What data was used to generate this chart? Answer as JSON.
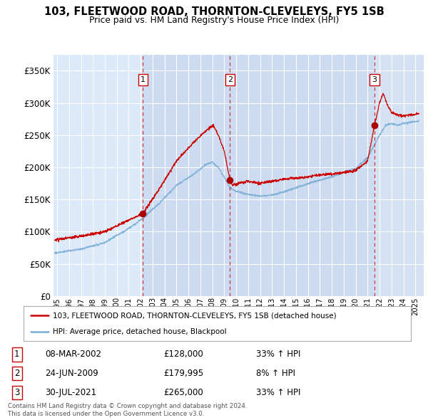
{
  "title": "103, FLEETWOOD ROAD, THORNTON-CLEVELEYS, FY5 1SB",
  "subtitle": "Price paid vs. HM Land Registry's House Price Index (HPI)",
  "ylabel_ticks": [
    "£0",
    "£50K",
    "£100K",
    "£150K",
    "£200K",
    "£250K",
    "£300K",
    "£350K"
  ],
  "ytick_values": [
    0,
    50000,
    100000,
    150000,
    200000,
    250000,
    300000,
    350000
  ],
  "ylim": [
    0,
    375000
  ],
  "xlim_start": 1994.7,
  "xlim_end": 2025.7,
  "background_color": "#dce9f8",
  "grid_color": "#ffffff",
  "sale_dates": [
    2002.18,
    2009.48,
    2021.58
  ],
  "sale_prices": [
    128000,
    179995,
    265000
  ],
  "sale_labels": [
    "1",
    "2",
    "3"
  ],
  "sale_line_color": "#cc0000",
  "hpi_line_color": "#7aadd4",
  "shade_color": "#c8d8f0",
  "legend_sale_label": "103, FLEETWOOD ROAD, THORNTON-CLEVELEYS, FY5 1SB (detached house)",
  "legend_hpi_label": "HPI: Average price, detached house, Blackpool",
  "table_rows": [
    [
      "1",
      "08-MAR-2002",
      "£128,000",
      "33% ↑ HPI"
    ],
    [
      "2",
      "24-JUN-2009",
      "£179,995",
      "8% ↑ HPI"
    ],
    [
      "3",
      "30-JUL-2021",
      "£265,000",
      "33% ↑ HPI"
    ]
  ],
  "footnote1": "Contains HM Land Registry data © Crown copyright and database right 2024.",
  "footnote2": "This data is licensed under the Open Government Licence v3.0."
}
